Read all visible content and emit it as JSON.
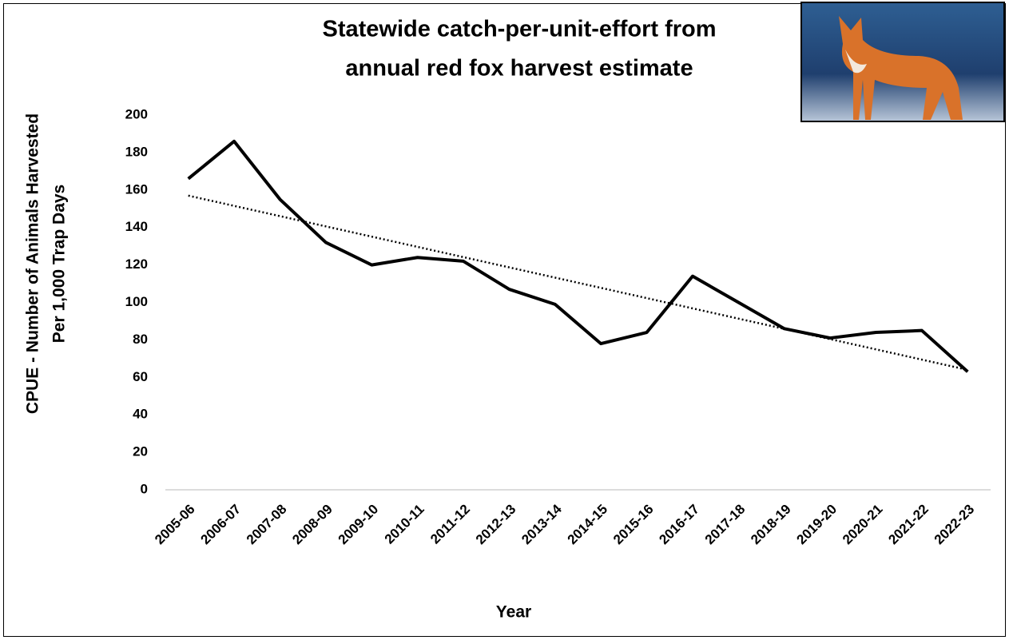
{
  "chart_data": {
    "type": "line",
    "title": [
      "Statewide catch-per-unit-effort from",
      "annual red fox harvest estimate"
    ],
    "x_label": "Year",
    "y_label": [
      "CPUE - Number of Animals Harvested",
      "Per 1,000 Trap Days"
    ],
    "categories": [
      "2005-06",
      "2006-07",
      "2007-08",
      "2008-09",
      "2009-10",
      "2010-11",
      "2011-12",
      "2012-13",
      "2013-14",
      "2014-15",
      "2015-16",
      "2016-17",
      "2017-18",
      "2018-19",
      "2019-20",
      "2020-21",
      "2021-22",
      "2022-23"
    ],
    "series": [
      {
        "color": "#000000",
        "values": [
          166,
          186,
          155,
          132,
          120,
          124,
          122,
          107,
          99,
          78,
          84,
          114,
          100,
          86,
          81,
          84,
          85,
          63
        ]
      }
    ],
    "trendline": {
      "color": "#000000",
      "style": "dotted",
      "values": [
        157,
        64
      ]
    },
    "ylim": [
      0,
      200
    ],
    "yticks": [
      0,
      20,
      40,
      60,
      80,
      100,
      120,
      140,
      160,
      180,
      200
    ],
    "grid": false
  }
}
